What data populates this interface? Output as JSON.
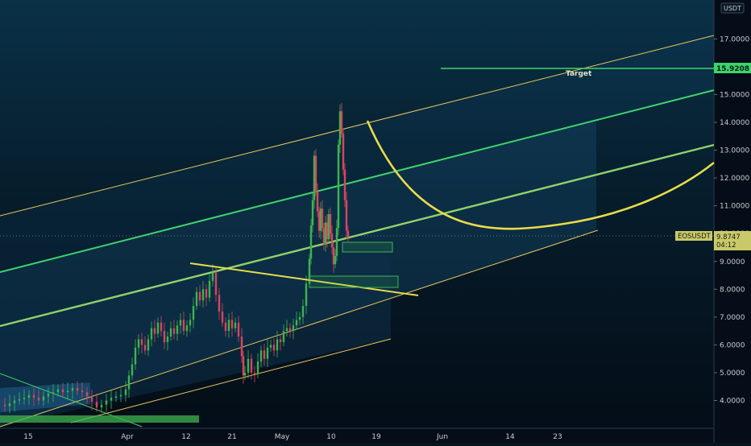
{
  "chart_data": {
    "type": "candlestick",
    "symbol": "EOSUSDT",
    "currency": "USDT",
    "last_price": "9.8747",
    "countdown": "04:12",
    "target_label": "Target",
    "target_price": "15.9208",
    "y_ticks": [
      "17.0000",
      "16.0000",
      "15.0000",
      "14.0000",
      "13.0000",
      "12.0000",
      "11.0000",
      "10.0000",
      "9.0000",
      "8.0000",
      "7.0000",
      "6.0000",
      "5.0000",
      "4.0000"
    ],
    "x_ticks": [
      "15",
      "Apr",
      "12",
      "21",
      "May",
      "10",
      "19",
      "Jun",
      "14",
      "23"
    ],
    "ylim": [
      3.0,
      18.0
    ],
    "grid": false,
    "colors": {
      "background": "#061420",
      "bull": "#3fb34f",
      "bear": "#d9455f",
      "channel": "#e6c95a",
      "channel_mid": "#3fd36b",
      "target_line": "#3fd36b",
      "curve": "#e8dc4a",
      "fill": "#1c5d8a"
    },
    "price_path": [
      [
        0,
        3.85
      ],
      [
        6,
        3.8
      ],
      [
        12,
        3.9
      ],
      [
        18,
        4.0
      ],
      [
        24,
        4.05
      ],
      [
        30,
        4.1
      ],
      [
        36,
        4.2
      ],
      [
        42,
        4.1
      ],
      [
        48,
        4.0
      ],
      [
        54,
        4.15
      ],
      [
        60,
        4.25
      ],
      [
        66,
        4.3
      ],
      [
        72,
        4.4
      ],
      [
        78,
        4.3
      ],
      [
        84,
        4.35
      ],
      [
        90,
        4.45
      ],
      [
        96,
        4.35
      ],
      [
        102,
        4.3
      ],
      [
        108,
        4.15
      ],
      [
        114,
        3.95
      ],
      [
        120,
        3.75
      ],
      [
        126,
        3.85
      ],
      [
        132,
        4.0
      ],
      [
        138,
        4.1
      ],
      [
        144,
        4.15
      ],
      [
        150,
        4.2
      ],
      [
        156,
        4.4
      ],
      [
        160,
        4.9
      ],
      [
        164,
        5.3
      ],
      [
        168,
        5.9
      ],
      [
        172,
        6.2
      ],
      [
        176,
        6.0
      ],
      [
        180,
        5.8
      ],
      [
        184,
        6.2
      ],
      [
        188,
        6.6
      ],
      [
        192,
        6.4
      ],
      [
        196,
        6.8
      ],
      [
        200,
        6.5
      ],
      [
        204,
        6.1
      ],
      [
        208,
        6.3
      ],
      [
        212,
        6.6
      ],
      [
        216,
        6.4
      ],
      [
        220,
        6.7
      ],
      [
        224,
        6.9
      ],
      [
        228,
        6.5
      ],
      [
        232,
        6.7
      ],
      [
        236,
        6.9
      ],
      [
        240,
        7.4
      ],
      [
        244,
        7.9
      ],
      [
        248,
        7.6
      ],
      [
        252,
        8.0
      ],
      [
        256,
        7.7
      ],
      [
        260,
        8.3
      ],
      [
        264,
        8.6
      ],
      [
        268,
        7.8
      ],
      [
        272,
        7.2
      ],
      [
        276,
        6.8
      ],
      [
        280,
        6.5
      ],
      [
        284,
        6.9
      ],
      [
        288,
        6.6
      ],
      [
        292,
        6.8
      ],
      [
        296,
        6.3
      ],
      [
        300,
        5.6
      ],
      [
        302,
        4.9
      ],
      [
        304,
        5.0
      ],
      [
        308,
        5.5
      ],
      [
        312,
        5.0
      ],
      [
        316,
        4.95
      ],
      [
        320,
        5.4
      ],
      [
        324,
        5.8
      ],
      [
        328,
        5.5
      ],
      [
        332,
        5.9
      ],
      [
        336,
        6.0
      ],
      [
        340,
        5.8
      ],
      [
        344,
        6.2
      ],
      [
        348,
        6.1
      ],
      [
        352,
        6.5
      ],
      [
        356,
        6.6
      ],
      [
        360,
        6.5
      ],
      [
        364,
        6.7
      ],
      [
        368,
        6.9
      ],
      [
        372,
        7.0
      ],
      [
        376,
        7.4
      ],
      [
        380,
        8.2
      ],
      [
        384,
        9.1
      ],
      [
        386,
        10.3
      ],
      [
        388,
        11.2
      ],
      [
        390,
        12.8
      ],
      [
        392,
        11.5
      ],
      [
        394,
        10.8
      ],
      [
        396,
        10.1
      ],
      [
        398,
        10.9
      ],
      [
        400,
        10.2
      ],
      [
        402,
        9.6
      ],
      [
        404,
        10.4
      ],
      [
        406,
        9.8
      ],
      [
        408,
        10.7
      ],
      [
        410,
        10.0
      ],
      [
        412,
        9.5
      ],
      [
        414,
        8.9
      ],
      [
        416,
        9.2
      ],
      [
        418,
        10.2
      ],
      [
        420,
        13.2
      ],
      [
        422,
        14.4
      ],
      [
        424,
        13.6
      ],
      [
        426,
        12.3
      ],
      [
        428,
        11.2
      ],
      [
        430,
        10.1
      ],
      [
        432,
        9.87
      ]
    ]
  }
}
